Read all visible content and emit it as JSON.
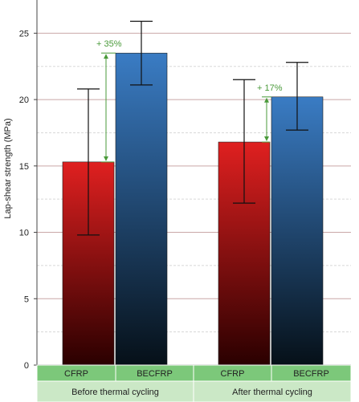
{
  "chart_data": {
    "type": "bar",
    "title": "",
    "xlabel": "",
    "ylabel": "Lap-shear strength (MPa)",
    "ylim": [
      0,
      27.5
    ],
    "yticks": [
      0,
      5,
      10,
      15,
      20,
      25
    ],
    "grid": true,
    "groups": [
      "Before thermal cycling",
      "After thermal cycling"
    ],
    "categories": [
      "CFRP",
      "BECFRP",
      "CFRP",
      "BECFRP"
    ],
    "series": [
      {
        "values": [
          15.3,
          23.5,
          16.8,
          20.2
        ],
        "error_low": [
          9.8,
          21.1,
          12.2,
          17.7
        ],
        "error_high": [
          20.8,
          25.9,
          21.5,
          22.8
        ]
      }
    ],
    "annotations": [
      "+ 35%",
      "+ 17%"
    ],
    "colors": {
      "cfrp_top": "#e02020",
      "cfrp_bottom": "#2a0000",
      "becfrp_top": "#3a7cc4",
      "becfrp_bottom": "#061018",
      "grid_major": "#c9a7a7",
      "grid_minor": "#d8d8d8",
      "category_row": "#7cc87a",
      "group_row": "#cbe8c6",
      "annotation": "#4a9a3a"
    }
  }
}
